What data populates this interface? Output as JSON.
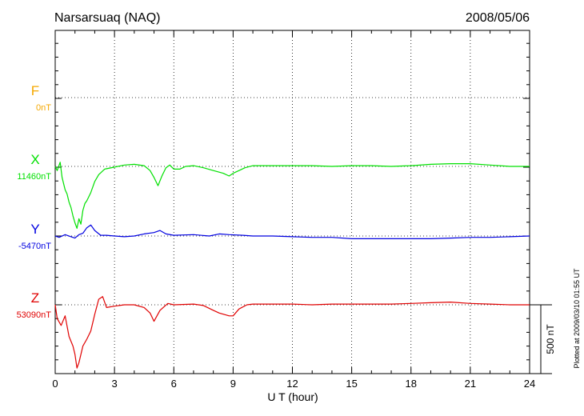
{
  "chart_data": {
    "type": "line",
    "title": "Narsarsuaq (NAQ)",
    "date": "2008/05/06",
    "xlabel": "U T (hour)",
    "xlim": [
      0,
      24
    ],
    "xticks": [
      0,
      3,
      6,
      9,
      12,
      15,
      18,
      21,
      24
    ],
    "scale_bar_label": "500 nT",
    "scale_bar_nT": 500,
    "plotted_note": "Plotted at 2009/03/10 01:55 UT",
    "grid": true,
    "series": [
      {
        "name": "F",
        "baseline_label": "0nT",
        "color": "#f5a800",
        "points": []
      },
      {
        "name": "X",
        "baseline_label": "11460nT",
        "color": "#00e000",
        "points": [
          [
            0,
            0
          ],
          [
            0.1,
            -30
          ],
          [
            0.25,
            30
          ],
          [
            0.35,
            -80
          ],
          [
            0.5,
            -170
          ],
          [
            0.6,
            -200
          ],
          [
            0.7,
            -260
          ],
          [
            0.8,
            -300
          ],
          [
            0.9,
            -360
          ],
          [
            1.0,
            -410
          ],
          [
            1.1,
            -450
          ],
          [
            1.2,
            -380
          ],
          [
            1.3,
            -420
          ],
          [
            1.4,
            -320
          ],
          [
            1.5,
            -270
          ],
          [
            1.6,
            -250
          ],
          [
            1.8,
            -190
          ],
          [
            2.0,
            -110
          ],
          [
            2.2,
            -60
          ],
          [
            2.5,
            -20
          ],
          [
            3.0,
            -5
          ],
          [
            3.5,
            10
          ],
          [
            4.0,
            15
          ],
          [
            4.5,
            5
          ],
          [
            4.8,
            -30
          ],
          [
            5.0,
            -80
          ],
          [
            5.2,
            -140
          ],
          [
            5.4,
            -70
          ],
          [
            5.6,
            -10
          ],
          [
            5.8,
            10
          ],
          [
            6.0,
            -20
          ],
          [
            6.3,
            -20
          ],
          [
            6.6,
            0
          ],
          [
            7.0,
            5
          ],
          [
            7.5,
            -10
          ],
          [
            8.0,
            -30
          ],
          [
            8.5,
            -50
          ],
          [
            8.8,
            -70
          ],
          [
            9.0,
            -50
          ],
          [
            9.3,
            -30
          ],
          [
            9.6,
            -10
          ],
          [
            10.0,
            5
          ],
          [
            11,
            5
          ],
          [
            12,
            5
          ],
          [
            13,
            5
          ],
          [
            14,
            0
          ],
          [
            15,
            5
          ],
          [
            16,
            5
          ],
          [
            17,
            0
          ],
          [
            18,
            5
          ],
          [
            19,
            15
          ],
          [
            20,
            20
          ],
          [
            21,
            20
          ],
          [
            22,
            10
          ],
          [
            23,
            0
          ],
          [
            24,
            0
          ]
        ]
      },
      {
        "name": "Y",
        "baseline_label": "-5470nT",
        "color": "#0000e0",
        "points": [
          [
            0,
            0
          ],
          [
            0.2,
            -10
          ],
          [
            0.5,
            10
          ],
          [
            0.8,
            -5
          ],
          [
            1.0,
            -15
          ],
          [
            1.2,
            10
          ],
          [
            1.4,
            20
          ],
          [
            1.6,
            60
          ],
          [
            1.8,
            80
          ],
          [
            2.0,
            40
          ],
          [
            2.3,
            5
          ],
          [
            2.6,
            5
          ],
          [
            3.0,
            0
          ],
          [
            3.5,
            -5
          ],
          [
            4.0,
            0
          ],
          [
            4.5,
            15
          ],
          [
            5.0,
            25
          ],
          [
            5.3,
            40
          ],
          [
            5.6,
            15
          ],
          [
            6.0,
            5
          ],
          [
            7.0,
            10
          ],
          [
            7.8,
            0
          ],
          [
            8.3,
            15
          ],
          [
            8.8,
            10
          ],
          [
            9.5,
            5
          ],
          [
            10,
            0
          ],
          [
            11,
            0
          ],
          [
            12,
            -5
          ],
          [
            13,
            -10
          ],
          [
            14,
            -10
          ],
          [
            15,
            -20
          ],
          [
            16,
            -20
          ],
          [
            17,
            -20
          ],
          [
            18,
            -20
          ],
          [
            19,
            -20
          ],
          [
            20,
            -15
          ],
          [
            21,
            -10
          ],
          [
            22,
            -10
          ],
          [
            23,
            -5
          ],
          [
            24,
            0
          ]
        ]
      },
      {
        "name": "Z",
        "baseline_label": "53090nT",
        "color": "#e00000",
        "points": [
          [
            0,
            0
          ],
          [
            0.1,
            -100
          ],
          [
            0.3,
            -150
          ],
          [
            0.5,
            -80
          ],
          [
            0.7,
            -230
          ],
          [
            0.9,
            -300
          ],
          [
            1.0,
            -360
          ],
          [
            1.1,
            -460
          ],
          [
            1.2,
            -420
          ],
          [
            1.4,
            -300
          ],
          [
            1.6,
            -250
          ],
          [
            1.8,
            -190
          ],
          [
            2.0,
            -70
          ],
          [
            2.2,
            40
          ],
          [
            2.4,
            60
          ],
          [
            2.6,
            -20
          ],
          [
            3.0,
            -10
          ],
          [
            3.5,
            0
          ],
          [
            4.0,
            0
          ],
          [
            4.5,
            -20
          ],
          [
            4.8,
            -60
          ],
          [
            5.0,
            -120
          ],
          [
            5.3,
            -40
          ],
          [
            5.7,
            10
          ],
          [
            6.0,
            0
          ],
          [
            7.0,
            5
          ],
          [
            7.5,
            -5
          ],
          [
            8.0,
            -40
          ],
          [
            8.3,
            -60
          ],
          [
            8.8,
            -80
          ],
          [
            9.0,
            -80
          ],
          [
            9.3,
            -30
          ],
          [
            9.7,
            0
          ],
          [
            10,
            5
          ],
          [
            11,
            5
          ],
          [
            12,
            5
          ],
          [
            13,
            0
          ],
          [
            14,
            5
          ],
          [
            15,
            5
          ],
          [
            16,
            5
          ],
          [
            17,
            5
          ],
          [
            18,
            10
          ],
          [
            19,
            15
          ],
          [
            20,
            20
          ],
          [
            21,
            10
          ],
          [
            22,
            5
          ],
          [
            23,
            0
          ],
          [
            24,
            0
          ]
        ]
      }
    ]
  }
}
